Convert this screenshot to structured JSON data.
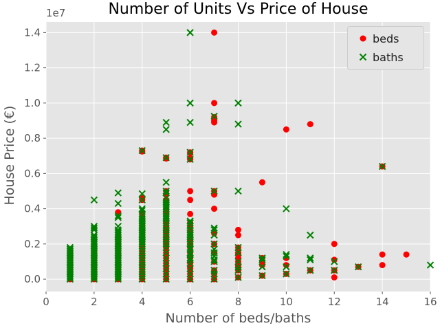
{
  "chart_data": {
    "type": "scatter",
    "title": "Number of Units Vs Price of House",
    "xlabel": "Number of beds/baths",
    "ylabel": "House Price (€)",
    "y_offset_label": "1e7",
    "xlim": [
      0,
      16
    ],
    "ylim": [
      -0.07,
      1.46
    ],
    "y_scale_factor": 10000000,
    "xticks": [
      0,
      2,
      4,
      6,
      8,
      10,
      12,
      14,
      16
    ],
    "xtick_labels": [
      "0",
      "2",
      "4",
      "6",
      "8",
      "10",
      "12",
      "14",
      "16"
    ],
    "yticks": [
      0.0,
      0.2,
      0.4,
      0.6,
      0.8,
      1.0,
      1.2,
      1.4
    ],
    "ytick_labels": [
      "0.0",
      "0.2",
      "0.4",
      "0.6",
      "0.8",
      "1.0",
      "1.2",
      "1.4"
    ],
    "grid": true,
    "legend_position": "top-right",
    "series": [
      {
        "name": "beds",
        "marker": "circle",
        "color": "#ff0000",
        "x": [
          1,
          1,
          1,
          1,
          1,
          1,
          1,
          1,
          1,
          1,
          1,
          1,
          1,
          1,
          1,
          1,
          2,
          2,
          2,
          2,
          2,
          2,
          2,
          2,
          2,
          2,
          2,
          2,
          2,
          2,
          2,
          2,
          2,
          2,
          2,
          2,
          2,
          2,
          3,
          3,
          3,
          3,
          3,
          3,
          3,
          3,
          3,
          3,
          3,
          3,
          3,
          3,
          3,
          3,
          3,
          3,
          3,
          3,
          3,
          3,
          3,
          3,
          3,
          3,
          3,
          4,
          4,
          4,
          4,
          4,
          4,
          4,
          4,
          4,
          4,
          4,
          4,
          4,
          4,
          4,
          4,
          4,
          4,
          4,
          4,
          4,
          4,
          4,
          4,
          4,
          4,
          4,
          4,
          4,
          4,
          5,
          5,
          5,
          5,
          5,
          5,
          5,
          5,
          5,
          5,
          5,
          5,
          5,
          5,
          5,
          5,
          5,
          5,
          5,
          5,
          5,
          5,
          5,
          5,
          5,
          5,
          5,
          6,
          6,
          6,
          6,
          6,
          6,
          6,
          6,
          6,
          6,
          6,
          6,
          6,
          6,
          6,
          6,
          6,
          6,
          6,
          6,
          6,
          6,
          6,
          7,
          7,
          7,
          7,
          7,
          7,
          7,
          7,
          7,
          7,
          7,
          7,
          7,
          7,
          7,
          8,
          8,
          8,
          8,
          8,
          8,
          8,
          8,
          8,
          8,
          8,
          9,
          9,
          9,
          9,
          9,
          10,
          10,
          10,
          10,
          11,
          11,
          12,
          12,
          12,
          12,
          13,
          14,
          14,
          14,
          15
        ],
        "y": [
          0.0,
          0.02,
          0.03,
          0.04,
          0.05,
          0.06,
          0.07,
          0.08,
          0.09,
          0.1,
          0.11,
          0.12,
          0.13,
          0.14,
          0.15,
          0.16,
          0.0,
          0.01,
          0.02,
          0.03,
          0.04,
          0.05,
          0.06,
          0.07,
          0.08,
          0.09,
          0.1,
          0.11,
          0.12,
          0.13,
          0.14,
          0.15,
          0.16,
          0.17,
          0.18,
          0.19,
          0.2,
          0.22,
          0.0,
          0.01,
          0.02,
          0.03,
          0.04,
          0.05,
          0.06,
          0.07,
          0.08,
          0.09,
          0.1,
          0.11,
          0.12,
          0.13,
          0.14,
          0.15,
          0.16,
          0.17,
          0.18,
          0.19,
          0.2,
          0.21,
          0.22,
          0.23,
          0.24,
          0.25,
          0.38,
          0.0,
          0.02,
          0.04,
          0.06,
          0.08,
          0.1,
          0.12,
          0.14,
          0.16,
          0.18,
          0.2,
          0.21,
          0.22,
          0.23,
          0.24,
          0.25,
          0.26,
          0.27,
          0.28,
          0.29,
          0.3,
          0.31,
          0.32,
          0.34,
          0.38,
          0.45,
          0.46,
          0.73,
          0.725,
          0.35,
          0.0,
          0.03,
          0.06,
          0.09,
          0.12,
          0.15,
          0.18,
          0.2,
          0.22,
          0.24,
          0.26,
          0.28,
          0.3,
          0.32,
          0.34,
          0.36,
          0.38,
          0.4,
          0.42,
          0.44,
          0.45,
          0.48,
          0.5,
          0.69,
          0.685,
          0.21,
          0.27,
          0.0,
          0.03,
          0.06,
          0.09,
          0.12,
          0.15,
          0.18,
          0.2,
          0.22,
          0.25,
          0.27,
          0.3,
          0.32,
          0.37,
          0.45,
          0.5,
          0.68,
          0.685,
          0.72,
          0.715,
          0.07,
          0.13,
          0.1,
          0.0,
          0.05,
          0.1,
          0.15,
          0.2,
          0.26,
          0.4,
          0.48,
          0.5,
          0.89,
          0.9,
          0.92,
          1.0,
          1.4,
          0.03,
          0.01,
          0.05,
          0.08,
          0.1,
          0.12,
          0.15,
          0.18,
          0.25,
          0.28,
          0.14,
          0.07,
          0.02,
          0.08,
          0.1,
          0.12,
          0.55,
          0.03,
          0.08,
          0.12,
          0.85,
          0.05,
          0.88,
          0.01,
          0.05,
          0.11,
          0.2,
          0.07,
          0.08,
          0.14,
          0.64,
          0.14
        ]
      },
      {
        "name": "baths",
        "marker": "x",
        "color": "#008000",
        "x": [
          1,
          1,
          1,
          1,
          1,
          1,
          1,
          1,
          1,
          1,
          1,
          1,
          1,
          1,
          1,
          1,
          1,
          1,
          1,
          2,
          2,
          2,
          2,
          2,
          2,
          2,
          2,
          2,
          2,
          2,
          2,
          2,
          2,
          2,
          2,
          2,
          2,
          2,
          2,
          2,
          2,
          2,
          2,
          2,
          2,
          2,
          2,
          2,
          2,
          3,
          3,
          3,
          3,
          3,
          3,
          3,
          3,
          3,
          3,
          3,
          3,
          3,
          3,
          3,
          3,
          3,
          3,
          3,
          3,
          3,
          3,
          3,
          3,
          3,
          3,
          3,
          3,
          3,
          3,
          3,
          3,
          3,
          3,
          4,
          4,
          4,
          4,
          4,
          4,
          4,
          4,
          4,
          4,
          4,
          4,
          4,
          4,
          4,
          4,
          4,
          4,
          4,
          4,
          4,
          4,
          4,
          4,
          4,
          4,
          4,
          4,
          4,
          4,
          4,
          4,
          5,
          5,
          5,
          5,
          5,
          5,
          5,
          5,
          5,
          5,
          5,
          5,
          5,
          5,
          5,
          5,
          5,
          5,
          5,
          5,
          5,
          5,
          5,
          5,
          5,
          5,
          5,
          5,
          5,
          5,
          6,
          6,
          6,
          6,
          6,
          6,
          6,
          6,
          6,
          6,
          6,
          6,
          6,
          6,
          6,
          6,
          6,
          6,
          6,
          6,
          6,
          6,
          6,
          6,
          6,
          7,
          7,
          7,
          7,
          7,
          7,
          7,
          7,
          7,
          7,
          7,
          7,
          7,
          7,
          8,
          8,
          8,
          8,
          8,
          8,
          8,
          8,
          8,
          9,
          9,
          9,
          9,
          10,
          10,
          10,
          10,
          10,
          11,
          11,
          11,
          11,
          12,
          12,
          13,
          14,
          16
        ],
        "y": [
          0.0,
          0.01,
          0.02,
          0.03,
          0.04,
          0.05,
          0.06,
          0.07,
          0.08,
          0.09,
          0.1,
          0.11,
          0.12,
          0.13,
          0.14,
          0.15,
          0.16,
          0.17,
          0.18,
          0.0,
          0.01,
          0.02,
          0.03,
          0.04,
          0.05,
          0.06,
          0.07,
          0.08,
          0.09,
          0.1,
          0.11,
          0.12,
          0.13,
          0.14,
          0.15,
          0.16,
          0.17,
          0.18,
          0.19,
          0.2,
          0.21,
          0.22,
          0.23,
          0.24,
          0.25,
          0.28,
          0.29,
          0.3,
          0.45,
          0.0,
          0.01,
          0.02,
          0.03,
          0.04,
          0.05,
          0.06,
          0.07,
          0.08,
          0.09,
          0.1,
          0.11,
          0.12,
          0.13,
          0.14,
          0.15,
          0.16,
          0.17,
          0.18,
          0.19,
          0.2,
          0.21,
          0.22,
          0.23,
          0.24,
          0.25,
          0.26,
          0.27,
          0.28,
          0.3,
          0.35,
          0.43,
          0.49,
          0.36,
          0.0,
          0.02,
          0.04,
          0.06,
          0.08,
          0.1,
          0.12,
          0.14,
          0.16,
          0.18,
          0.2,
          0.21,
          0.22,
          0.23,
          0.24,
          0.25,
          0.26,
          0.27,
          0.28,
          0.29,
          0.3,
          0.31,
          0.32,
          0.33,
          0.35,
          0.37,
          0.4,
          0.45,
          0.485,
          0.73,
          0.39,
          0.34,
          0.0,
          0.03,
          0.06,
          0.09,
          0.12,
          0.15,
          0.18,
          0.2,
          0.22,
          0.24,
          0.26,
          0.28,
          0.3,
          0.32,
          0.34,
          0.36,
          0.38,
          0.4,
          0.42,
          0.44,
          0.46,
          0.49,
          0.5,
          0.55,
          0.69,
          0.85,
          0.89,
          0.41,
          0.43,
          0.35,
          0.0,
          0.03,
          0.06,
          0.09,
          0.12,
          0.15,
          0.18,
          0.2,
          0.22,
          0.24,
          0.26,
          0.28,
          0.3,
          0.32,
          0.33,
          0.25,
          0.2,
          0.68,
          0.72,
          0.89,
          1.0,
          1.4,
          0.17,
          0.14,
          0.11,
          0.0,
          0.05,
          0.1,
          0.15,
          0.2,
          0.25,
          0.28,
          0.29,
          0.5,
          0.925,
          0.11,
          0.17,
          0.13,
          0.03,
          0.01,
          0.05,
          0.1,
          0.15,
          0.18,
          0.5,
          0.88,
          1.0,
          0.07,
          0.02,
          0.07,
          0.12,
          0.11,
          0.03,
          0.07,
          0.13,
          0.14,
          0.4,
          0.05,
          0.11,
          0.12,
          0.25,
          0.05,
          0.1,
          0.07,
          0.64,
          0.08
        ]
      }
    ]
  }
}
